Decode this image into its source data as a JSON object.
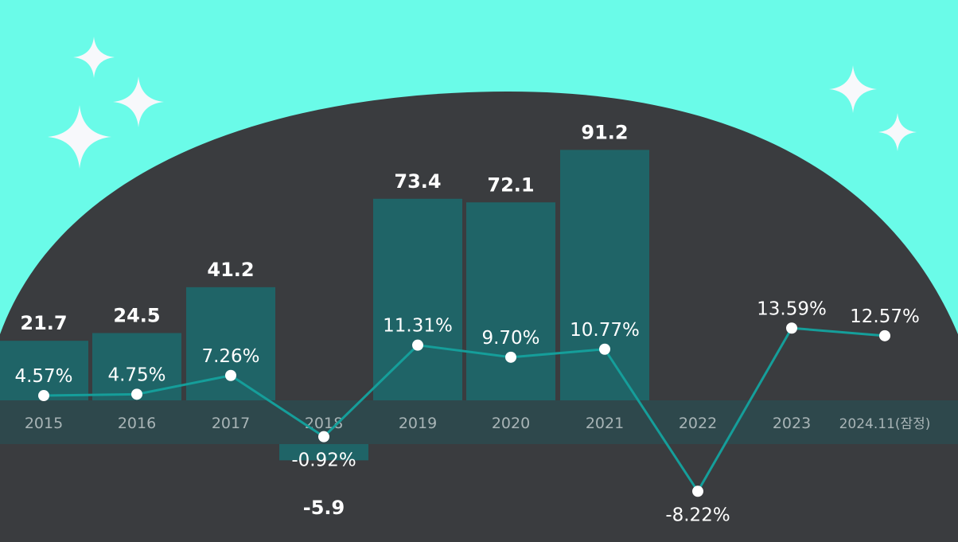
{
  "colors": {
    "background": "#6afbe8",
    "dome": "#3a3c3f",
    "bar": "#1f6467",
    "axis_band": "#2e4a4d",
    "line": "#159e9a",
    "point": "#ffffff",
    "text": "#ffffff",
    "year_text": "#a8b4b6",
    "sparkle": "#f7f8fb"
  },
  "chart_data": {
    "type": "bar",
    "categories": [
      "2015",
      "2016",
      "2017",
      "2018",
      "2019",
      "2020",
      "2021",
      "2022",
      "2023",
      "2024.11(잠정)"
    ],
    "series": [
      {
        "type": "bar",
        "values": [
          21.7,
          24.5,
          41.2,
          -5.9,
          73.4,
          72.1,
          91.2,
          null,
          null,
          null
        ],
        "value_labels": [
          "21.7",
          "24.5",
          "41.2",
          "-5.9",
          "73.4",
          "72.1",
          "91.2",
          "",
          "",
          ""
        ]
      },
      {
        "type": "line",
        "values": [
          4.57,
          4.75,
          7.26,
          -0.92,
          11.31,
          9.7,
          10.77,
          -8.22,
          13.59,
          12.57
        ],
        "value_labels": [
          "4.57%",
          "4.75%",
          "7.26%",
          "-0.92%",
          "11.31%",
          "9.70%",
          "10.77%",
          "-8.22%",
          "13.59%",
          "12.57%"
        ]
      }
    ],
    "title": "",
    "xlabel": "",
    "ylabel": ""
  }
}
